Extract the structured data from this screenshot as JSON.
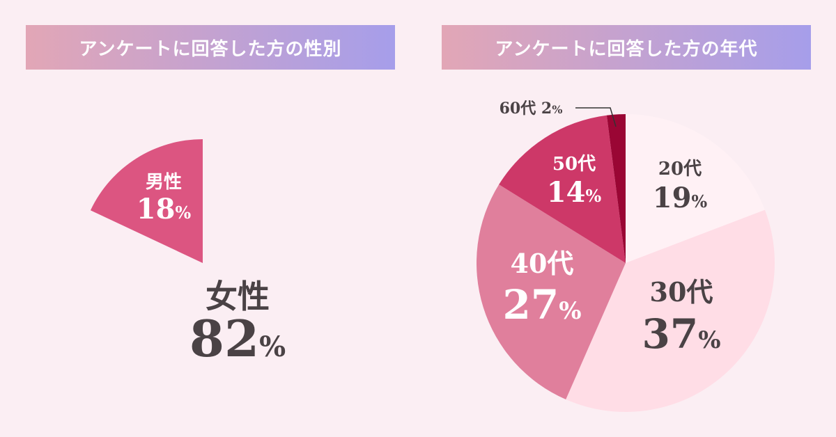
{
  "colors": {
    "banner_left": "#e2a6b6",
    "banner_right": "#a69eea"
  },
  "chart_data": [
    {
      "type": "pie",
      "title": "アンケートに回答した方の性別",
      "slices": [
        {
          "label": "女性",
          "value": 82,
          "pct_text": "82",
          "color": "#ffd4df",
          "text_color": "#4a4245"
        },
        {
          "label": "男性",
          "value": 18,
          "pct_text": "18",
          "color": "#dc5581",
          "text_color": "#ffffff"
        }
      ]
    },
    {
      "type": "pie",
      "title": "アンケートに回答した方の年代",
      "slices": [
        {
          "label": "20代",
          "value": 19,
          "pct_text": "19",
          "color": "#fff1f5",
          "text_color": "#4a4245"
        },
        {
          "label": "30代",
          "value": 37,
          "pct_text": "37",
          "color": "#ffdde6",
          "text_color": "#4a4245"
        },
        {
          "label": "40代",
          "value": 27,
          "pct_text": "27",
          "color": "#e07f9c",
          "text_color": "#ffffff"
        },
        {
          "label": "50代",
          "value": 14,
          "pct_text": "14",
          "color": "#cd3868",
          "text_color": "#ffffff"
        },
        {
          "label": "60代",
          "value": 2,
          "pct_text": "2",
          "color": "#9a0634",
          "text_color": "#4a4245"
        }
      ],
      "percent_sign": "%"
    }
  ]
}
